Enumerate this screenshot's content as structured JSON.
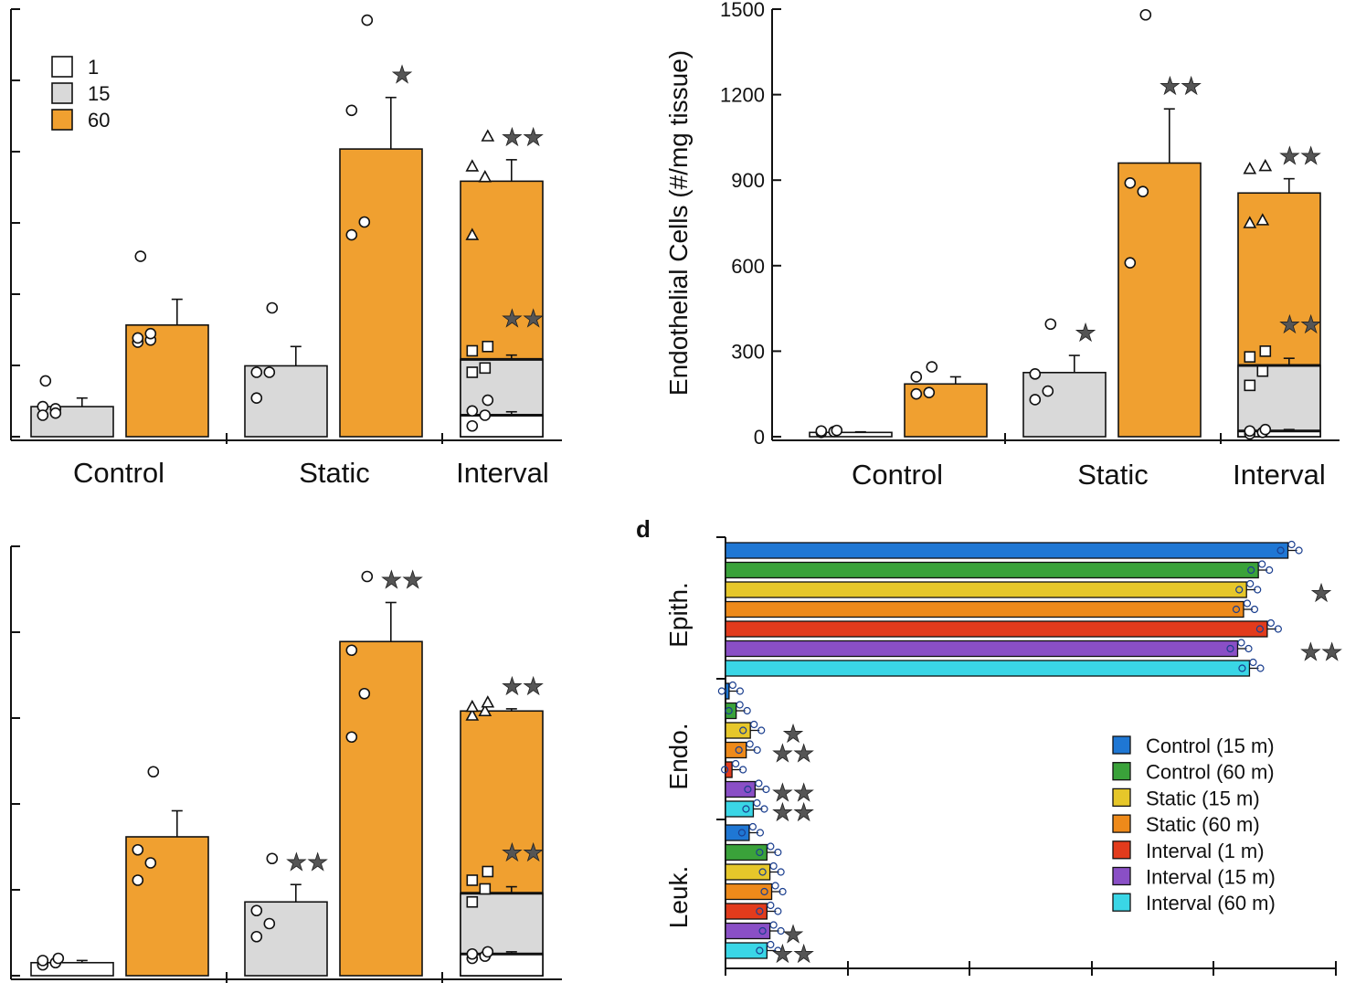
{
  "colors": {
    "c1": "#ffffff",
    "c15": "#d9d9d9",
    "c60": "#f0a030",
    "edge": "#111111"
  },
  "panels": [
    {
      "id": "a",
      "letter": "",
      "ylabel": "",
      "yticks": [],
      "ylim": [
        0,
        100
      ],
      "categories": [
        "Control",
        "Static",
        "Interval"
      ],
      "legend": [
        {
          "label": "1",
          "color": "#ffffff"
        },
        {
          "label": "15",
          "color": "#d9d9d9"
        },
        {
          "label": "60",
          "color": "#f0a030"
        }
      ],
      "bars": [
        {
          "group": "Control",
          "cond": "15",
          "value": 7,
          "err": 2,
          "points": [
            7,
            6.5,
            5,
            5.5,
            13
          ],
          "marker": "circle"
        },
        {
          "group": "Control",
          "cond": "60",
          "value": 26,
          "err": 6,
          "points": [
            22,
            22.5,
            23,
            24,
            42
          ],
          "marker": "circle"
        },
        {
          "group": "Static",
          "cond": "15",
          "value": 16.5,
          "err": 4.5,
          "points": [
            9,
            15,
            15,
            30
          ],
          "marker": "circle"
        },
        {
          "group": "Static",
          "cond": "60",
          "value": 67,
          "err": 12,
          "points": [
            47,
            50,
            76,
            97
          ],
          "marker": "circle",
          "stars": "*"
        },
        {
          "group": "Interval",
          "cond": "60",
          "value": 59.5,
          "err": 5,
          "points": [
            47,
            60.5,
            63,
            70
          ],
          "marker": "triangle",
          "stars": "**"
        },
        {
          "group": "Interval",
          "cond": "15",
          "value": 18,
          "err": 1,
          "points": [
            15,
            16,
            20,
            21
          ],
          "marker": "square",
          "stars": "**"
        },
        {
          "group": "Interval",
          "cond": "1",
          "value": 5,
          "err": 0.8,
          "points": [
            2.5,
            5,
            6,
            8.5
          ],
          "marker": "circle"
        }
      ]
    },
    {
      "id": "b",
      "letter": "",
      "ylabel": "Endothelial Cells (#/mg tissue)",
      "yticks": [
        "0",
        "300",
        "600",
        "900",
        "1200",
        "1500"
      ],
      "ylim": [
        0,
        1500
      ],
      "categories": [
        "Control",
        "Static",
        "Interval"
      ],
      "bars": [
        {
          "group": "Control",
          "cond": "1",
          "value": 15,
          "err": 2,
          "points": [
            15,
            18,
            20,
            22
          ],
          "marker": "circle"
        },
        {
          "group": "Control",
          "cond": "60",
          "value": 185,
          "err": 25,
          "points": [
            150,
            155,
            210,
            245
          ],
          "marker": "circle"
        },
        {
          "group": "Static",
          "cond": "15",
          "value": 225,
          "err": 60,
          "points": [
            130,
            160,
            220,
            395
          ],
          "marker": "circle",
          "stars": "*"
        },
        {
          "group": "Static",
          "cond": "60",
          "value": 960,
          "err": 190,
          "points": [
            610,
            860,
            890,
            1480
          ],
          "marker": "circle",
          "stars": "**"
        },
        {
          "group": "Interval",
          "cond": "60",
          "value": 855,
          "err": 50,
          "points": [
            750,
            760,
            940,
            950
          ],
          "marker": "triangle",
          "stars": "**"
        },
        {
          "group": "Interval",
          "cond": "15",
          "value": 250,
          "err": 25,
          "points": [
            180,
            230,
            280,
            300
          ],
          "marker": "square",
          "stars": "**"
        },
        {
          "group": "Interval",
          "cond": "1",
          "value": 20,
          "err": 5,
          "points": [
            10,
            15,
            20,
            25
          ],
          "marker": "circle"
        }
      ]
    },
    {
      "id": "c",
      "letter": "",
      "ylabel": "",
      "yticks": [],
      "ylim": [
        0,
        100
      ],
      "categories": [],
      "bars": [
        {
          "group": "Control",
          "cond": "1",
          "value": 3,
          "err": 0.5,
          "points": [
            2.5,
            3,
            3.5,
            4
          ],
          "marker": "circle"
        },
        {
          "group": "Control",
          "cond": "60",
          "value": 32,
          "err": 6,
          "points": [
            22,
            26,
            29,
            47
          ],
          "marker": "circle"
        },
        {
          "group": "Static",
          "cond": "15",
          "value": 17,
          "err": 4,
          "points": [
            9,
            12,
            15,
            27
          ],
          "marker": "circle",
          "stars": "**"
        },
        {
          "group": "Static",
          "cond": "60",
          "value": 77,
          "err": 9,
          "points": [
            55,
            65,
            75,
            92
          ],
          "marker": "circle",
          "stars": "**"
        },
        {
          "group": "Interval",
          "cond": "60",
          "value": 61,
          "err": 0.5,
          "points": [
            60,
            61,
            62,
            63
          ],
          "marker": "triangle",
          "stars": "**"
        },
        {
          "group": "Interval",
          "cond": "15",
          "value": 19,
          "err": 1.5,
          "points": [
            17,
            20,
            22,
            24
          ],
          "marker": "square",
          "stars": "**"
        },
        {
          "group": "Interval",
          "cond": "1",
          "value": 5,
          "err": 0.5,
          "points": [
            4,
            4.5,
            5,
            5.5
          ],
          "marker": "circle"
        }
      ]
    },
    {
      "id": "d",
      "letter": "d",
      "type": "horizontal-bar",
      "groups": [
        "Epith.",
        "Endo.",
        "Leuk."
      ],
      "series": [
        {
          "name": "Control (15 m)",
          "color": "#1f77d4"
        },
        {
          "name": "Control (60 m)",
          "color": "#3aa23a"
        },
        {
          "name": "Static (15 m)",
          "color": "#e6c72a"
        },
        {
          "name": "Static (60 m)",
          "color": "#ee8a1a"
        },
        {
          "name": "Interval (1 m)",
          "color": "#e23b1c"
        },
        {
          "name": "Interval (15 m)",
          "color": "#8a4fc6"
        },
        {
          "name": "Interval (60 m)",
          "color": "#3ad6e6"
        }
      ],
      "xlim": [
        0,
        100
      ],
      "values": {
        "Epith.": [
          95,
          90,
          88,
          87.5,
          91.5,
          86.5,
          88.5
        ],
        "Endo.": [
          0.6,
          1.8,
          4.2,
          3.5,
          1.1,
          5,
          4.7
        ],
        "Leuk.": [
          4,
          7,
          7.5,
          7.8,
          7,
          7.5,
          7
        ]
      },
      "stars": {
        "Epith.": [
          "",
          "",
          "*",
          "",
          "",
          "**",
          ""
        ],
        "Endo.": [
          "",
          "",
          "*",
          "**",
          "",
          "**",
          "**"
        ],
        "Leuk.": [
          "",
          "",
          "",
          "",
          "",
          "*",
          "**"
        ]
      }
    }
  ]
}
